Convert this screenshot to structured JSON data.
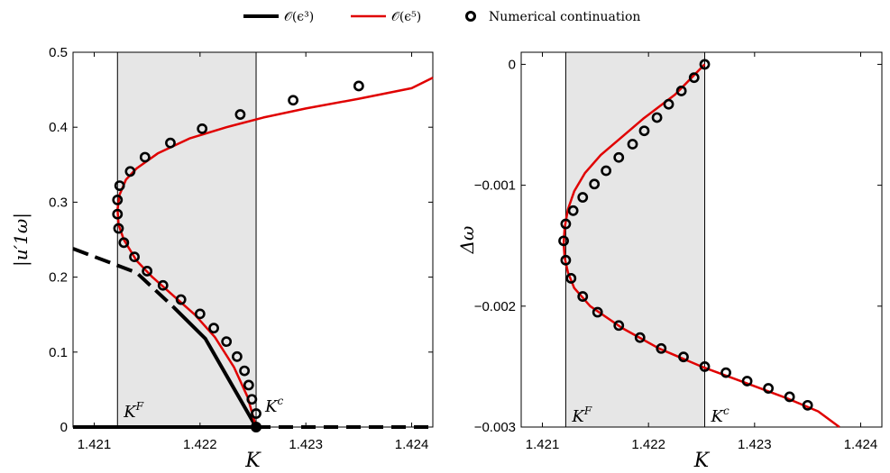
{
  "legend": {
    "items": [
      {
        "label": "𝒪(ϵ³)",
        "color": "#000000",
        "style": "solid-thick"
      },
      {
        "label": "𝒪(ϵ⁵)",
        "color": "#e00000",
        "style": "solid"
      },
      {
        "label": "Numerical continuation",
        "color": "#000000",
        "style": "circle-marker"
      }
    ]
  },
  "chart_data": [
    {
      "type": "line",
      "xlabel": "K",
      "ylabel": "|u′1ω|",
      "xlim": [
        1.4208,
        1.4242
      ],
      "ylim": [
        0,
        0.5
      ],
      "xticks": [
        "1.421",
        "1.422",
        "1.423",
        "1.424"
      ],
      "xtick_values": [
        1.421,
        1.422,
        1.423,
        1.424
      ],
      "yticks": [
        "0",
        "0.1",
        "0.2",
        "0.3",
        "0.4",
        "0.5"
      ],
      "ytick_values": [
        0,
        0.1,
        0.2,
        0.3,
        0.4,
        0.5
      ],
      "shaded_band": [
        1.42122,
        1.42253
      ],
      "annotations": [
        {
          "text": "K^F",
          "x": 1.42122,
          "y": 0.02
        },
        {
          "text": "K^c",
          "x": 1.42253,
          "y": 0.045
        }
      ],
      "marker_point": {
        "x": 1.42253,
        "y": 0
      },
      "o3_branches": {
        "upper_dashed": [
          [
            1.4208,
            0.238
          ],
          [
            1.4214,
            0.206
          ],
          [
            1.42175,
            0.16
          ]
        ],
        "upper_solid": [
          [
            1.42175,
            0.16
          ],
          [
            1.42205,
            0.118
          ],
          [
            1.42253,
            0.0
          ]
        ],
        "zero_solid": [
          [
            1.4208,
            0.0
          ],
          [
            1.42253,
            0.0
          ]
        ],
        "zero_dashed": [
          [
            1.42253,
            0.0
          ],
          [
            1.4242,
            0.0
          ]
        ]
      },
      "o5_curve": {
        "stable": [
          [
            1.42253,
            0.0
          ],
          [
            1.42245,
            0.04
          ],
          [
            1.42232,
            0.08
          ],
          [
            1.42214,
            0.12
          ],
          [
            1.42195,
            0.15
          ],
          [
            1.42175,
            0.175
          ],
          [
            1.42155,
            0.2
          ],
          [
            1.4214,
            0.222
          ],
          [
            1.42128,
            0.25
          ],
          [
            1.42123,
            0.27
          ],
          [
            1.42122,
            0.29
          ],
          [
            1.42124,
            0.31
          ],
          [
            1.4213,
            0.33
          ],
          [
            1.4214,
            0.345
          ],
          [
            1.4216,
            0.365
          ],
          [
            1.4219,
            0.385
          ],
          [
            1.42225,
            0.4
          ],
          [
            1.4226,
            0.413
          ],
          [
            1.423,
            0.425
          ],
          [
            1.4235,
            0.438
          ],
          [
            1.424,
            0.452
          ],
          [
            1.4242,
            0.466
          ]
        ]
      },
      "numerical": {
        "x": [
          1.42253,
          1.42249,
          1.42246,
          1.42242,
          1.42235,
          1.42225,
          1.42213,
          1.422,
          1.42182,
          1.42165,
          1.4215,
          1.42138,
          1.42128,
          1.42123,
          1.42122,
          1.42122,
          1.42124,
          1.42134,
          1.42148,
          1.42172,
          1.42202,
          1.42238,
          1.42288,
          1.4235
        ],
        "y": [
          0.018,
          0.037,
          0.056,
          0.075,
          0.094,
          0.114,
          0.132,
          0.151,
          0.17,
          0.189,
          0.208,
          0.227,
          0.246,
          0.265,
          0.284,
          0.303,
          0.322,
          0.341,
          0.36,
          0.379,
          0.398,
          0.417,
          0.436,
          0.455
        ]
      }
    },
    {
      "type": "line",
      "xlabel": "K",
      "ylabel": "Δω",
      "xlim": [
        1.4208,
        1.4242
      ],
      "ylim": [
        -0.003,
        0.0001
      ],
      "xticks": [
        "1.421",
        "1.422",
        "1.423",
        "1.424"
      ],
      "xtick_values": [
        1.421,
        1.422,
        1.423,
        1.424
      ],
      "yticks": [
        "0",
        "−0.001",
        "−0.002",
        "−0.003"
      ],
      "ytick_values": [
        0,
        -0.001,
        -0.002,
        -0.003
      ],
      "shaded_band": [
        1.42122,
        1.42253
      ],
      "annotations": [
        {
          "text": "K^F",
          "x": 1.42122,
          "y": -0.00293
        },
        {
          "text": "K^c",
          "x": 1.42253,
          "y": -0.00293
        }
      ],
      "o5_curve": {
        "values": [
          [
            1.42253,
            0.0
          ],
          [
            1.42225,
            -0.00025
          ],
          [
            1.42195,
            -0.00045
          ],
          [
            1.42175,
            -0.0006
          ],
          [
            1.42155,
            -0.00075
          ],
          [
            1.4214,
            -0.0009
          ],
          [
            1.4213,
            -0.00105
          ],
          [
            1.42124,
            -0.0012
          ],
          [
            1.42121,
            -0.00135
          ],
          [
            1.4212,
            -0.00148
          ],
          [
            1.42121,
            -0.0016
          ],
          [
            1.42124,
            -0.00172
          ],
          [
            1.4213,
            -0.00185
          ],
          [
            1.42145,
            -0.002
          ],
          [
            1.42175,
            -0.00218
          ],
          [
            1.4221,
            -0.00235
          ],
          [
            1.4225,
            -0.0025
          ],
          [
            1.4229,
            -0.00263
          ],
          [
            1.4233,
            -0.00276
          ],
          [
            1.4236,
            -0.00287
          ],
          [
            1.4238,
            -0.003
          ]
        ]
      },
      "numerical": {
        "x": [
          1.42253,
          1.42243,
          1.42231,
          1.42219,
          1.42208,
          1.42196,
          1.42185,
          1.42172,
          1.4216,
          1.42149,
          1.42138,
          1.42129,
          1.42122,
          1.4212,
          1.42122,
          1.42127,
          1.42138,
          1.42152,
          1.42172,
          1.42192,
          1.42212,
          1.42233,
          1.42253,
          1.42273,
          1.42293,
          1.42313,
          1.42333,
          1.4235
        ],
        "y": [
          0.0,
          -0.00011,
          -0.00022,
          -0.00033,
          -0.00044,
          -0.00055,
          -0.00066,
          -0.00077,
          -0.00088,
          -0.00099,
          -0.0011,
          -0.00121,
          -0.00132,
          -0.00146,
          -0.00162,
          -0.00177,
          -0.00192,
          -0.00205,
          -0.00216,
          -0.00226,
          -0.00235,
          -0.00242,
          -0.0025,
          -0.00255,
          -0.00262,
          -0.00268,
          -0.00275,
          -0.00282
        ]
      }
    }
  ]
}
